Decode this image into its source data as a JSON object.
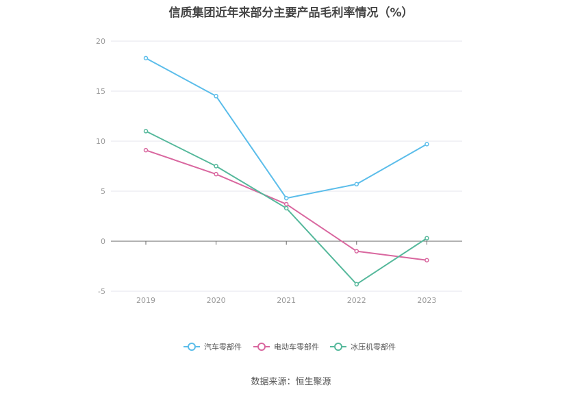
{
  "chart_data": {
    "type": "line",
    "title": "信质集团近年来部分主要产品毛利率情况（%）",
    "xlabel": "",
    "ylabel": "",
    "categories": [
      "2019",
      "2020",
      "2021",
      "2022",
      "2023"
    ],
    "ylim": [
      -5,
      20
    ],
    "yticks": [
      -5,
      0,
      5,
      10,
      15,
      20
    ],
    "grid": true,
    "legend_position": "bottom",
    "series": [
      {
        "name": "汽车零部件",
        "color": "#5bbdea",
        "values": [
          18.3,
          14.5,
          4.3,
          5.7,
          9.7
        ]
      },
      {
        "name": "电动车零部件",
        "color": "#d9679f",
        "values": [
          9.1,
          6.7,
          3.7,
          -1.0,
          -1.9
        ]
      },
      {
        "name": "冰压机零部件",
        "color": "#55b89b",
        "values": [
          11.0,
          7.5,
          3.3,
          -4.3,
          0.3
        ]
      }
    ]
  },
  "source": "数据来源：恒生聚源"
}
